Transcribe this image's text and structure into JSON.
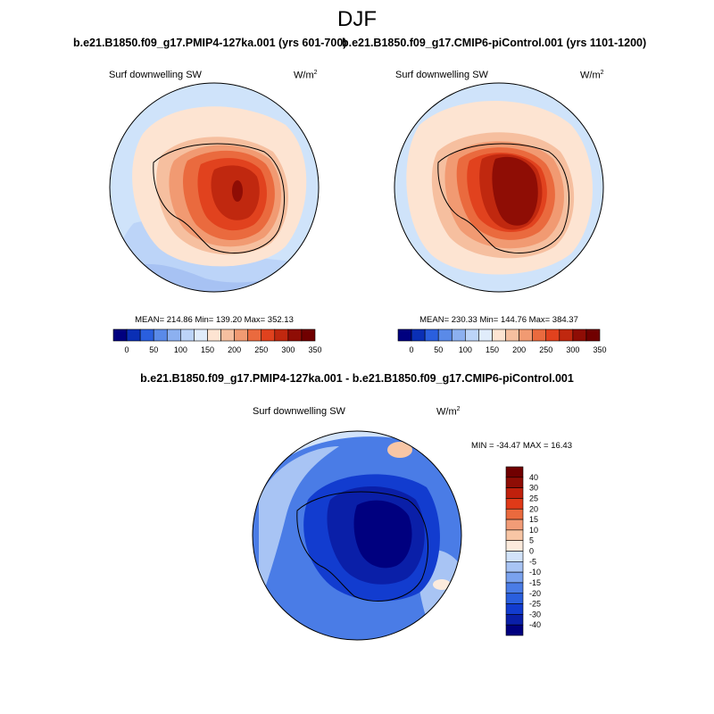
{
  "figure": {
    "title": "DJF",
    "units_base": "W/m",
    "units_exp": "2",
    "variable": "Surf downwelling SW"
  },
  "colors": {
    "abs_scale": [
      "#00007f",
      "#0a2fb5",
      "#2a5fde",
      "#5a8ae8",
      "#8cb0f0",
      "#bcd4f8",
      "#e0ecfb",
      "#fde4d2",
      "#f6bf9f",
      "#f19a72",
      "#ea6a3e",
      "#e1421e",
      "#c0280f",
      "#8f0d05",
      "#700000"
    ],
    "diff_scale": [
      "#00007f",
      "#0a1fa8",
      "#123ccf",
      "#2a5fde",
      "#4a7ce6",
      "#7aa2ee",
      "#a8c4f4",
      "#d2e3fa",
      "#fcebdd",
      "#f8c6a5",
      "#f29c77",
      "#ea6a3e",
      "#e03a18",
      "#c0200c",
      "#8f0d05",
      "#700000"
    ]
  },
  "chart_data": [
    {
      "type": "heatmap",
      "projection": "south polar stereographic",
      "title": "b.e21.B1850.f09_g17.PMIP4-127ka.001 (yrs 601-700)",
      "variable": "Surf downwelling SW",
      "units": "W/m2",
      "stats_text": "MEAN= 214.86  Min= 139.20  Max= 352.13",
      "mean": 214.86,
      "min": 139.2,
      "max": 352.13,
      "colorbar_ticks": [
        "0",
        "50",
        "100",
        "150",
        "200",
        "250",
        "300",
        "350"
      ],
      "levels": [
        -25,
        0,
        25,
        50,
        75,
        100,
        125,
        150,
        175,
        200,
        225,
        250,
        275,
        300,
        325,
        350
      ]
    },
    {
      "type": "heatmap",
      "projection": "south polar stereographic",
      "title": "b.e21.B1850.f09_g17.CMIP6-piControl.001 (yrs 1101-1200)",
      "variable": "Surf downwelling SW",
      "units": "W/m2",
      "stats_text": "MEAN= 230.33  Min= 144.76  Max= 384.37",
      "mean": 230.33,
      "min": 144.76,
      "max": 384.37,
      "colorbar_ticks": [
        "0",
        "50",
        "100",
        "150",
        "200",
        "250",
        "300",
        "350"
      ],
      "levels": [
        -25,
        0,
        25,
        50,
        75,
        100,
        125,
        150,
        175,
        200,
        225,
        250,
        275,
        300,
        325,
        350
      ]
    },
    {
      "type": "heatmap",
      "projection": "south polar stereographic",
      "title": "b.e21.B1850.f09_g17.PMIP4-127ka.001 - b.e21.B1850.f09_g17.CMIP6-piControl.001",
      "variable": "Surf downwelling SW",
      "units": "W/m2",
      "stats_text": "MIN = -34.47 MAX =  16.43",
      "min": -34.47,
      "max": 16.43,
      "colorbar_ticks": [
        "40",
        "30",
        "25",
        "20",
        "15",
        "10",
        "5",
        "0",
        "-5",
        "-10",
        "-15",
        "-20",
        "-25",
        "-30",
        "-40"
      ],
      "levels": [
        -40,
        -30,
        -25,
        -20,
        -15,
        -10,
        -5,
        0,
        5,
        10,
        15,
        20,
        25,
        30,
        40
      ]
    }
  ]
}
